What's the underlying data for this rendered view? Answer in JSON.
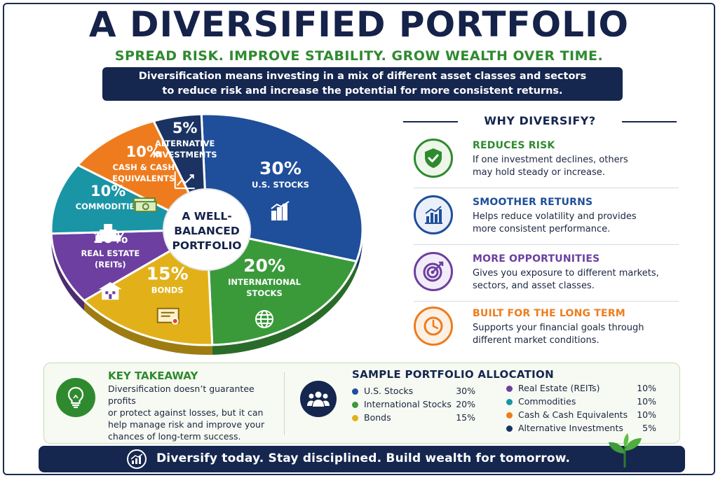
{
  "title": "A DIVERSIFIED PORTFOLIO",
  "subtitle": "SPREAD RISK. IMPROVE STABILITY. GROW WEALTH OVER TIME.",
  "intro": {
    "line1": "Diversification means investing in a mix of different asset classes and sectors",
    "line2": "to reduce risk and increase the potential for more consistent returns."
  },
  "chart_data": {
    "type": "pie",
    "center_label": [
      "A WELL-",
      "BALANCED",
      "PORTFOLIO"
    ],
    "slices": [
      {
        "label": [
          "U.S. STOCKS"
        ],
        "value": 30,
        "display": "30%",
        "color": "#1f4e9a",
        "icon": "bar-chart-icon"
      },
      {
        "label": [
          "INTERNATIONAL",
          "STOCKS"
        ],
        "value": 20,
        "display": "20%",
        "color": "#3a9a3a",
        "icon": "globe-icon"
      },
      {
        "label": [
          "BONDS"
        ],
        "value": 15,
        "display": "15%",
        "color": "#e2b11a",
        "icon": "certificate-icon"
      },
      {
        "label": [
          "REAL ESTATE",
          "(REITs)"
        ],
        "value": 10,
        "display": "10%",
        "color": "#6c3fa0",
        "icon": "building-icon"
      },
      {
        "label": [
          "COMMODITIES"
        ],
        "value": 10,
        "display": "10%",
        "color": "#1a95a5",
        "icon": "gold-bars-icon"
      },
      {
        "label": [
          "CASH & CASH",
          "EQUIVALENTS"
        ],
        "value": 10,
        "display": "10%",
        "color": "#ee7c1e",
        "icon": "cash-icon"
      },
      {
        "label": [
          "ALTERNATIVE",
          "INVESTMENTS"
        ],
        "value": 5,
        "display": "5%",
        "color": "#1b3362",
        "icon": "trend-line-icon"
      }
    ]
  },
  "why": {
    "title": "WHY DIVERSIFY?",
    "items": [
      {
        "heading": "REDUCES RISK",
        "line1": "If one investment declines, others",
        "line2": "may hold steady or increase.",
        "color": "#2f8a2f",
        "icon": "shield-check-icon"
      },
      {
        "heading": "SMOOTHER RETURNS",
        "line1": "Helps reduce volatility and provides",
        "line2": "more consistent performance.",
        "color": "#1f4e9a",
        "icon": "bar-chart-icon"
      },
      {
        "heading": "MORE OPPORTUNITIES",
        "line1": "Gives you exposure to different markets,",
        "line2": "sectors, and asset classes.",
        "color": "#6c3fa0",
        "icon": "target-icon"
      },
      {
        "heading": "BUILT FOR THE LONG TERM",
        "line1": "Supports your financial goals through",
        "line2": "different market conditions.",
        "color": "#ee7c1e",
        "icon": "clock-icon"
      }
    ]
  },
  "takeaway": {
    "title": "KEY TAKEAWAY",
    "lines": [
      "Diversification doesn’t guarantee profits",
      "or protect against losses, but it can",
      "help manage risk and improve your",
      "chances of long-term success."
    ]
  },
  "allocation": {
    "title": "SAMPLE PORTFOLIO ALLOCATION",
    "left": [
      {
        "name": "U.S. Stocks",
        "pct": "30%",
        "color": "#1f4e9a"
      },
      {
        "name": "International Stocks",
        "pct": "20%",
        "color": "#3a9a3a"
      },
      {
        "name": "Bonds",
        "pct": "15%",
        "color": "#e2b11a"
      }
    ],
    "right": [
      {
        "name": "Real Estate (REITs)",
        "pct": "10%",
        "color": "#6c3fa0"
      },
      {
        "name": "Commodities",
        "pct": "10%",
        "color": "#1a95a5"
      },
      {
        "name": "Cash & Cash Equivalents",
        "pct": "10%",
        "color": "#ee7c1e"
      },
      {
        "name": "Alternative Investments",
        "pct": "5%",
        "color": "#1b3362"
      }
    ]
  },
  "footer": "Diversify today. Stay disciplined. Build wealth for tomorrow."
}
